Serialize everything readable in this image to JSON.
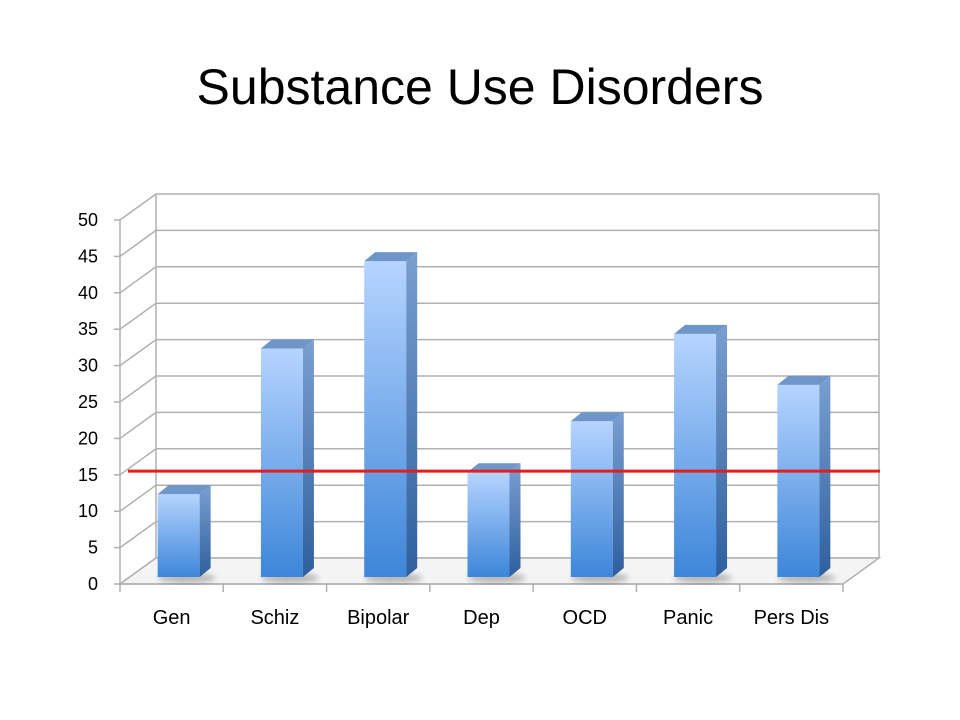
{
  "slide": {
    "title": "Substance Use Disorders"
  },
  "chart_data": {
    "type": "bar",
    "title": "Substance Use Disorders",
    "categories": [
      "Gen",
      "Schiz",
      "Bipolar",
      "Dep",
      "OCD",
      "Panic",
      "Pers Dis"
    ],
    "values": [
      14,
      34,
      46,
      17,
      24,
      36,
      29
    ],
    "reference_line": 15.5,
    "ylim": [
      0,
      50
    ],
    "yticks": [
      0,
      5,
      10,
      15,
      20,
      25,
      30,
      35,
      40,
      45,
      50
    ],
    "grid": true,
    "legend": "none",
    "style": "3d-column",
    "colors": {
      "bar_light": "#b6d4ff",
      "bar_dark": "#3d7fcf",
      "reference_line": "#e02020",
      "grid": "#b0b0b0"
    }
  }
}
